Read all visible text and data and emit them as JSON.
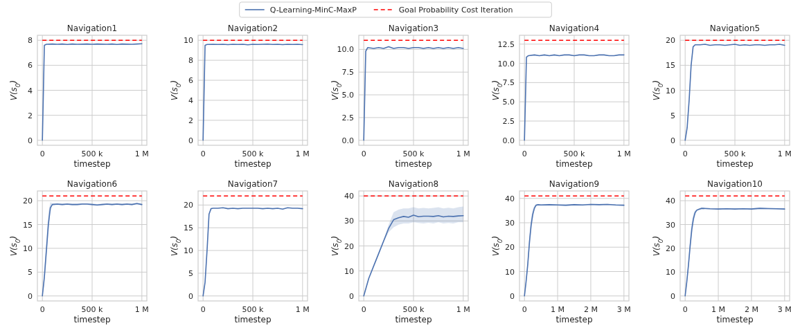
{
  "chart_data": [
    {
      "type": "line",
      "title": "Navigation1",
      "xlabel": "timestep",
      "ylabel": "V(s$_{0}$)",
      "grid": true,
      "legend": "top",
      "line_style": "solid",
      "xlim": [
        -50000,
        1050000
      ],
      "xticks": [
        {
          "value": 0,
          "label": "0"
        },
        {
          "value": 500000,
          "label": "500 k"
        },
        {
          "value": 1000000,
          "label": "1 M"
        }
      ],
      "ylim": [
        -0.4,
        8.4
      ],
      "yticks": [
        0,
        2,
        4,
        6,
        8
      ],
      "x": [
        0,
        20000,
        40000,
        100000,
        150000,
        200000,
        250000,
        300000,
        350000,
        400000,
        450000,
        500000,
        550000,
        600000,
        650000,
        700000,
        750000,
        800000,
        850000,
        900000,
        950000,
        1000000
      ],
      "series": [
        {
          "name": "Q-Learning-MinC-MaxP",
          "color": "#4c72b0",
          "values": [
            0,
            7.6,
            7.68,
            7.7,
            7.68,
            7.7,
            7.67,
            7.7,
            7.68,
            7.69,
            7.7,
            7.68,
            7.7,
            7.69,
            7.68,
            7.7,
            7.67,
            7.7,
            7.69,
            7.68,
            7.7,
            7.72
          ]
        }
      ],
      "ref_lines": [
        {
          "axis": "y",
          "value": 8,
          "label": "Goal Probability Cost Iteration",
          "color": "#ff0000",
          "line_style": "dashed"
        }
      ]
    },
    {
      "type": "line",
      "title": "Navigation2",
      "xlabel": "timestep",
      "ylabel": "V(s$_{0}$)",
      "grid": true,
      "line_style": "solid",
      "xlim": [
        -50000,
        1050000
      ],
      "xticks": [
        {
          "value": 0,
          "label": "0"
        },
        {
          "value": 500000,
          "label": "500 k"
        },
        {
          "value": 1000000,
          "label": "1 M"
        }
      ],
      "ylim": [
        -0.5,
        10.5
      ],
      "yticks": [
        0,
        2,
        4,
        6,
        8,
        10
      ],
      "x": [
        0,
        20000,
        40000,
        100000,
        150000,
        200000,
        250000,
        300000,
        350000,
        400000,
        450000,
        500000,
        550000,
        600000,
        650000,
        700000,
        750000,
        800000,
        850000,
        900000,
        950000,
        1000000
      ],
      "series": [
        {
          "color": "#4c72b0",
          "values": [
            0,
            9.5,
            9.58,
            9.6,
            9.58,
            9.6,
            9.57,
            9.6,
            9.58,
            9.6,
            9.55,
            9.6,
            9.58,
            9.6,
            9.62,
            9.58,
            9.6,
            9.57,
            9.6,
            9.58,
            9.6,
            9.57
          ]
        }
      ],
      "ref_lines": [
        {
          "axis": "y",
          "value": 10,
          "color": "#ff0000",
          "line_style": "dashed"
        }
      ]
    },
    {
      "type": "line",
      "title": "Navigation3",
      "xlabel": "timestep",
      "ylabel": "V(s$_{0}$)",
      "grid": true,
      "line_style": "solid",
      "xlim": [
        -50000,
        1050000
      ],
      "xticks": [
        {
          "value": 0,
          "label": "0"
        },
        {
          "value": 500000,
          "label": "500 k"
        },
        {
          "value": 1000000,
          "label": "1 M"
        }
      ],
      "ylim": [
        -0.55,
        11.55
      ],
      "yticks": [
        {
          "value": 0,
          "label": "0.0"
        },
        2.5,
        {
          "value": 5,
          "label": "5.0"
        },
        7.5,
        {
          "value": 10,
          "label": "10.0"
        }
      ],
      "x": [
        0,
        20000,
        40000,
        100000,
        150000,
        200000,
        250000,
        300000,
        350000,
        400000,
        450000,
        500000,
        550000,
        600000,
        650000,
        700000,
        750000,
        800000,
        850000,
        900000,
        950000,
        1000000
      ],
      "series": [
        {
          "color": "#4c72b0",
          "values": [
            0,
            9.8,
            10.2,
            10.1,
            10.2,
            10.1,
            10.3,
            10.1,
            10.2,
            10.2,
            10.1,
            10.2,
            10.2,
            10.1,
            10.2,
            10.1,
            10.2,
            10.1,
            10.2,
            10.1,
            10.2,
            10.1
          ]
        }
      ],
      "ref_lines": [
        {
          "axis": "y",
          "value": 11,
          "color": "#ff0000",
          "line_style": "dashed"
        }
      ]
    },
    {
      "type": "line",
      "title": "Navigation4",
      "xlabel": "timestep",
      "ylabel": "V(s$_{0}$)",
      "grid": true,
      "line_style": "solid",
      "xlim": [
        -50000,
        1050000
      ],
      "xticks": [
        {
          "value": 0,
          "label": "0"
        },
        {
          "value": 500000,
          "label": "500 k"
        },
        {
          "value": 1000000,
          "label": "1 M"
        }
      ],
      "ylim": [
        -0.65,
        13.65
      ],
      "yticks": [
        {
          "value": 0,
          "label": "0.0"
        },
        2.5,
        {
          "value": 5,
          "label": "5.0"
        },
        7.5,
        {
          "value": 10,
          "label": "10.0"
        },
        12.5
      ],
      "x": [
        0,
        20000,
        40000,
        100000,
        150000,
        200000,
        250000,
        300000,
        350000,
        400000,
        450000,
        500000,
        550000,
        600000,
        650000,
        700000,
        750000,
        800000,
        850000,
        900000,
        950000,
        1000000
      ],
      "series": [
        {
          "color": "#4c72b0",
          "values": [
            0,
            10.8,
            11.0,
            11.1,
            11.0,
            11.1,
            11.0,
            11.1,
            11.0,
            11.1,
            11.1,
            11.0,
            11.1,
            11.1,
            11.0,
            11.0,
            11.1,
            11.1,
            11.0,
            11.0,
            11.1,
            11.1
          ]
        }
      ],
      "ref_lines": [
        {
          "axis": "y",
          "value": 13,
          "color": "#ff0000",
          "line_style": "dashed"
        }
      ]
    },
    {
      "type": "line",
      "title": "Navigation5",
      "xlabel": "timestep",
      "ylabel": "V(s$_{0}$)",
      "grid": true,
      "line_style": "solid",
      "xlim": [
        -50000,
        1050000
      ],
      "xticks": [
        {
          "value": 0,
          "label": "0"
        },
        {
          "value": 500000,
          "label": "500 k"
        },
        {
          "value": 1000000,
          "label": "1 M"
        }
      ],
      "ylim": [
        -1,
        21
      ],
      "yticks": [
        0,
        5,
        10,
        15,
        20
      ],
      "x": [
        0,
        20000,
        40000,
        60000,
        80000,
        100000,
        150000,
        200000,
        250000,
        300000,
        350000,
        400000,
        450000,
        500000,
        550000,
        600000,
        650000,
        700000,
        750000,
        800000,
        850000,
        900000,
        950000,
        1000000
      ],
      "series": [
        {
          "color": "#4c72b0",
          "values": [
            0,
            2.5,
            8,
            15,
            18.7,
            19.1,
            19.1,
            19.2,
            19.0,
            19.1,
            19.1,
            19.0,
            19.1,
            19.2,
            19.0,
            19.1,
            19.0,
            19.1,
            19.1,
            19.0,
            19.1,
            19.1,
            19.2,
            19.0
          ]
        }
      ],
      "ref_lines": [
        {
          "axis": "y",
          "value": 20,
          "color": "#ff0000",
          "line_style": "dashed"
        }
      ]
    },
    {
      "type": "line",
      "title": "Navigation6",
      "xlabel": "timestep",
      "ylabel": "V(s$_{0}$)",
      "grid": true,
      "line_style": "solid",
      "xlim": [
        -50000,
        1050000
      ],
      "xticks": [
        {
          "value": 0,
          "label": "0"
        },
        {
          "value": 500000,
          "label": "500 k"
        },
        {
          "value": 1000000,
          "label": "1 M"
        }
      ],
      "ylim": [
        -1.05,
        22.05
      ],
      "yticks": [
        0,
        5,
        10,
        15,
        20
      ],
      "x": [
        0,
        20000,
        40000,
        60000,
        80000,
        100000,
        150000,
        200000,
        250000,
        300000,
        350000,
        400000,
        450000,
        500000,
        550000,
        600000,
        650000,
        700000,
        750000,
        800000,
        850000,
        900000,
        950000,
        1000000
      ],
      "series": [
        {
          "color": "#4c72b0",
          "values": [
            0,
            4,
            9.5,
            15,
            18.5,
            19.2,
            19.3,
            19.2,
            19.3,
            19.2,
            19.2,
            19.3,
            19.3,
            19.2,
            19.1,
            19.2,
            19.3,
            19.2,
            19.3,
            19.2,
            19.3,
            19.2,
            19.4,
            19.2
          ],
          "lower": [
            0,
            2.5,
            7.5,
            13,
            17.5,
            19.0,
            19.1,
            19.05,
            19.1,
            19.0,
            19.05,
            19.1,
            19.1,
            19.05,
            18.9,
            19.0,
            19.1,
            19.05,
            19.1,
            19.0,
            19.1,
            19.05,
            19.2,
            19.0
          ],
          "upper": [
            0,
            5.5,
            11.5,
            17.5,
            19.7,
            19.5,
            19.5,
            19.45,
            19.5,
            19.4,
            19.45,
            19.5,
            19.5,
            19.45,
            19.3,
            19.4,
            19.5,
            19.45,
            19.5,
            19.4,
            19.5,
            19.45,
            19.6,
            19.4
          ]
        }
      ],
      "ref_lines": [
        {
          "axis": "y",
          "value": 21,
          "color": "#ff0000",
          "line_style": "dashed"
        }
      ]
    },
    {
      "type": "line",
      "title": "Navigation7",
      "xlabel": "timestep",
      "ylabel": "V(s$_{0}$)",
      "grid": true,
      "line_style": "solid",
      "xlim": [
        -50000,
        1050000
      ],
      "xticks": [
        {
          "value": 0,
          "label": "0"
        },
        {
          "value": 500000,
          "label": "500 k"
        },
        {
          "value": 1000000,
          "label": "1 M"
        }
      ],
      "ylim": [
        -1.1,
        23.1
      ],
      "yticks": [
        0,
        5,
        10,
        15,
        20
      ],
      "x": [
        0,
        20000,
        40000,
        60000,
        80000,
        100000,
        150000,
        200000,
        250000,
        300000,
        350000,
        400000,
        450000,
        500000,
        550000,
        600000,
        650000,
        700000,
        750000,
        800000,
        850000,
        900000,
        950000,
        1000000
      ],
      "series": [
        {
          "color": "#4c72b0",
          "values": [
            0,
            3,
            10,
            18,
            19.2,
            19.3,
            19.3,
            19.4,
            19.2,
            19.3,
            19.2,
            19.3,
            19.3,
            19.3,
            19.3,
            19.2,
            19.3,
            19.2,
            19.3,
            19.1,
            19.4,
            19.3,
            19.3,
            19.2
          ]
        }
      ],
      "ref_lines": [
        {
          "axis": "y",
          "value": 22,
          "color": "#ff0000",
          "line_style": "dashed"
        }
      ]
    },
    {
      "type": "line",
      "title": "Navigation8",
      "xlabel": "timestep",
      "ylabel": "V(s$_{0}$)",
      "grid": true,
      "line_style": "solid",
      "xlim": [
        -50000,
        1050000
      ],
      "xticks": [
        {
          "value": 0,
          "label": "0"
        },
        {
          "value": 500000,
          "label": "500 k"
        },
        {
          "value": 1000000,
          "label": "1 M"
        }
      ],
      "ylim": [
        -2,
        42
      ],
      "yticks": [
        0,
        10,
        20,
        30,
        40
      ],
      "x": [
        0,
        50000,
        100000,
        150000,
        200000,
        250000,
        300000,
        350000,
        400000,
        450000,
        500000,
        550000,
        600000,
        650000,
        700000,
        750000,
        800000,
        850000,
        900000,
        950000,
        1000000
      ],
      "series": [
        {
          "color": "#4c72b0",
          "values": [
            0,
            7,
            12,
            17,
            22,
            27,
            30.5,
            31.3,
            31.8,
            31.5,
            32.3,
            31.7,
            31.9,
            31.9,
            31.8,
            32.1,
            31.6,
            31.9,
            31.8,
            32.0,
            32.1
          ],
          "lower": [
            0,
            6.8,
            11.8,
            16.5,
            21.5,
            25.5,
            27.5,
            28.5,
            29,
            29,
            29.5,
            29.2,
            29,
            29.3,
            29,
            29.5,
            29,
            29.2,
            29,
            29.5,
            29.5
          ],
          "upper": [
            0,
            7.2,
            12.2,
            17.5,
            22.5,
            28.5,
            33.5,
            34.5,
            35,
            35,
            35.5,
            35,
            35.2,
            35,
            35.2,
            35.5,
            35,
            35.3,
            35,
            35.5,
            35.8
          ]
        }
      ],
      "ref_lines": [
        {
          "axis": "y",
          "value": 40,
          "color": "#ff0000",
          "line_style": "dashed"
        }
      ]
    },
    {
      "type": "line",
      "title": "Navigation9",
      "xlabel": "timestep",
      "ylabel": "V(s$_{0}$)",
      "grid": true,
      "line_style": "solid",
      "xlim": [
        -150000,
        3150000
      ],
      "xticks": [
        {
          "value": 0,
          "label": "0"
        },
        {
          "value": 1000000,
          "label": "1 M"
        },
        {
          "value": 2000000,
          "label": "2 M"
        },
        {
          "value": 3000000,
          "label": "3 M"
        }
      ],
      "ylim": [
        -2.05,
        43.05
      ],
      "yticks": [
        0,
        10,
        20,
        30,
        40
      ],
      "x": [
        0,
        50000,
        100000,
        150000,
        200000,
        250000,
        300000,
        350000,
        400000,
        500000,
        750000,
        1000000,
        1250000,
        1500000,
        1750000,
        2000000,
        2250000,
        2500000,
        2750000,
        3000000
      ],
      "series": [
        {
          "color": "#4c72b0",
          "values": [
            0,
            6,
            13,
            22,
            29,
            33.5,
            36,
            37.2,
            37.4,
            37.3,
            37.4,
            37.3,
            37.2,
            37.4,
            37.3,
            37.5,
            37.4,
            37.5,
            37.3,
            37.2
          ],
          "lower": [
            0,
            5,
            11,
            19,
            26,
            31.5,
            35,
            36.8,
            37.1,
            37.0,
            37.1,
            37.0,
            36.9,
            37.1,
            37.0,
            37.2,
            37.1,
            37.2,
            37.0,
            36.9
          ],
          "upper": [
            0,
            7,
            15,
            25,
            32,
            35.5,
            37,
            37.6,
            37.7,
            37.6,
            37.7,
            37.6,
            37.5,
            37.7,
            37.6,
            37.8,
            37.7,
            37.8,
            37.6,
            37.5
          ]
        }
      ],
      "ref_lines": [
        {
          "axis": "y",
          "value": 41,
          "color": "#ff0000",
          "line_style": "dashed"
        }
      ]
    },
    {
      "type": "line",
      "title": "Navigation10",
      "xlabel": "timestep",
      "ylabel": "V(s$_{0}$)",
      "grid": true,
      "line_style": "solid",
      "xlim": [
        -150000,
        3150000
      ],
      "xticks": [
        {
          "value": 0,
          "label": "0"
        },
        {
          "value": 1000000,
          "label": "1 M"
        },
        {
          "value": 2000000,
          "label": "2 M"
        },
        {
          "value": 3000000,
          "label": "3 M"
        }
      ],
      "ylim": [
        -2.1,
        44.1
      ],
      "yticks": [
        0,
        10,
        20,
        30,
        40
      ],
      "x": [
        0,
        50000,
        100000,
        150000,
        200000,
        250000,
        300000,
        350000,
        400000,
        500000,
        750000,
        1000000,
        1250000,
        1500000,
        1750000,
        2000000,
        2250000,
        2500000,
        2750000,
        3000000
      ],
      "series": [
        {
          "color": "#4c72b0",
          "values": [
            0,
            6,
            13,
            21,
            28,
            32.5,
            35,
            36,
            36.3,
            36.8,
            36.6,
            36.5,
            36.6,
            36.5,
            36.6,
            36.5,
            36.8,
            36.7,
            36.6,
            36.5
          ],
          "lower": [
            0,
            5,
            11,
            18,
            25,
            30.5,
            34,
            35.6,
            36.0,
            36.5,
            36.3,
            36.2,
            36.3,
            36.2,
            36.3,
            36.2,
            36.5,
            36.4,
            36.3,
            36.2
          ],
          "upper": [
            0,
            7,
            15,
            24,
            31,
            34.5,
            36,
            36.4,
            36.6,
            37.1,
            36.9,
            36.8,
            36.9,
            36.8,
            36.9,
            36.8,
            37.1,
            37.0,
            36.9,
            36.8
          ]
        }
      ],
      "ref_lines": [
        {
          "axis": "y",
          "value": 42,
          "color": "#ff0000",
          "line_style": "dashed"
        }
      ]
    }
  ]
}
